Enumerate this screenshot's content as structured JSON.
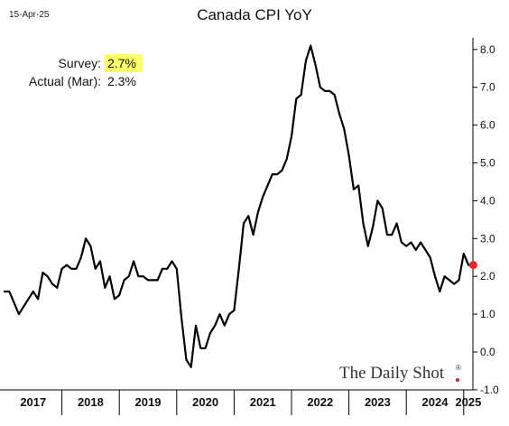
{
  "header": {
    "date": "15-Apr-25"
  },
  "brand": {
    "text": "The Daily Shot",
    "mark": "®"
  },
  "annotations": {
    "survey_label": "Survey:",
    "survey_value": "2.7%",
    "actual_label": "Actual (Mar):",
    "actual_value": "2.3%"
  },
  "colors": {
    "line": "#000000",
    "highlight": "#ffff66",
    "marker": "#e8262a",
    "brand_dot": "#cc2222"
  },
  "chart_data": {
    "type": "line",
    "title": "Canada CPI YoY",
    "xlabel": "",
    "ylabel": "",
    "ylim": [
      -1.0,
      8.5
    ],
    "grid": false,
    "y_ticks": [
      "8.0",
      "7.0",
      "6.0",
      "5.0",
      "4.0",
      "3.0",
      "2.0",
      "1.0",
      "0.0",
      "-1.0"
    ],
    "x_tick_labels": [
      "2017",
      "2018",
      "2019",
      "2020",
      "2021",
      "2022",
      "2023",
      "2024",
      "2025"
    ],
    "x_start": "2017-01",
    "x": [
      "2017-01",
      "2017-02",
      "2017-03",
      "2017-04",
      "2017-05",
      "2017-06",
      "2017-07",
      "2017-08",
      "2017-09",
      "2017-10",
      "2017-11",
      "2017-12",
      "2018-01",
      "2018-02",
      "2018-03",
      "2018-04",
      "2018-05",
      "2018-06",
      "2018-07",
      "2018-08",
      "2018-09",
      "2018-10",
      "2018-11",
      "2018-12",
      "2019-01",
      "2019-02",
      "2019-03",
      "2019-04",
      "2019-05",
      "2019-06",
      "2019-07",
      "2019-08",
      "2019-09",
      "2019-10",
      "2019-11",
      "2019-12",
      "2020-01",
      "2020-02",
      "2020-03",
      "2020-04",
      "2020-05",
      "2020-06",
      "2020-07",
      "2020-08",
      "2020-09",
      "2020-10",
      "2020-11",
      "2020-12",
      "2021-01",
      "2021-02",
      "2021-03",
      "2021-04",
      "2021-05",
      "2021-06",
      "2021-07",
      "2021-08",
      "2021-09",
      "2021-10",
      "2021-11",
      "2021-12",
      "2022-01",
      "2022-02",
      "2022-03",
      "2022-04",
      "2022-05",
      "2022-06",
      "2022-07",
      "2022-08",
      "2022-09",
      "2022-10",
      "2022-11",
      "2022-12",
      "2023-01",
      "2023-02",
      "2023-03",
      "2023-04",
      "2023-05",
      "2023-06",
      "2023-07",
      "2023-08",
      "2023-09",
      "2023-10",
      "2023-11",
      "2023-12",
      "2024-01",
      "2024-02",
      "2024-03",
      "2024-04",
      "2024-05",
      "2024-06",
      "2024-07",
      "2024-08",
      "2024-09",
      "2024-10",
      "2024-11",
      "2024-12",
      "2025-01",
      "2025-02"
    ],
    "series": [
      {
        "values": [
          1.6,
          1.6,
          1.3,
          1.0,
          1.2,
          1.4,
          1.6,
          1.4,
          2.1,
          2.0,
          1.8,
          1.7,
          2.2,
          2.3,
          2.2,
          2.2,
          2.5,
          3.0,
          2.8,
          2.2,
          2.4,
          1.7,
          2.0,
          1.4,
          1.5,
          1.9,
          2.0,
          2.4,
          2.0,
          2.0,
          1.9,
          1.9,
          1.9,
          2.2,
          2.2,
          2.4,
          2.2,
          0.9,
          -0.2,
          -0.4,
          0.7,
          0.1,
          0.1,
          0.5,
          0.7,
          1.0,
          0.7,
          1.0,
          1.1,
          2.2,
          3.4,
          3.6,
          3.1,
          3.7,
          4.1,
          4.4,
          4.7,
          4.7,
          4.8,
          5.1,
          5.7,
          6.7,
          6.8,
          7.7,
          8.1,
          7.6,
          7.0,
          6.9,
          6.9,
          6.8,
          6.3,
          5.9,
          5.2,
          4.3,
          4.4,
          3.4,
          2.8,
          3.3,
          4.0,
          3.8,
          3.1,
          3.1,
          3.4,
          2.9,
          2.8,
          2.9,
          2.7,
          2.9,
          2.7,
          2.5,
          2.0,
          1.6,
          2.0,
          1.9,
          1.8,
          1.9,
          2.6,
          2.3
        ]
      }
    ],
    "last_point": {
      "x": "2025-03",
      "y": 2.3
    }
  }
}
